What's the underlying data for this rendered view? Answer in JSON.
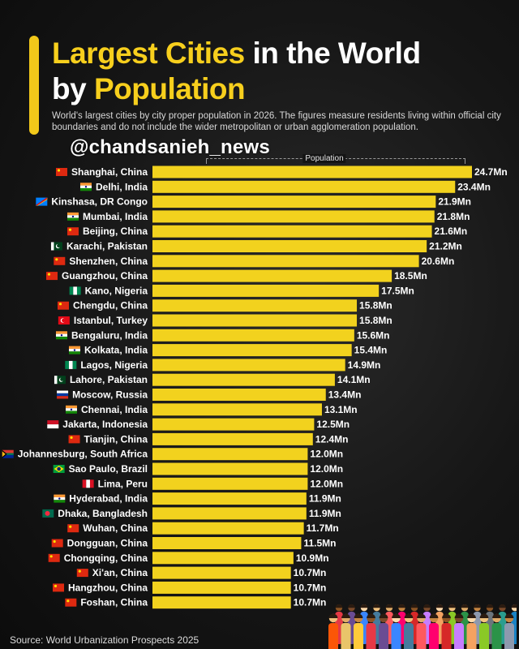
{
  "header": {
    "title_part1": "Largest Cities",
    "title_part2": " in the World",
    "title_part3": "by ",
    "title_part4": "Population",
    "subtitle": "World's largest cities by city proper population in 2026. The figures measure residents living within official city boundaries and do not include the wider metropolitan or urban agglomeration population.",
    "watermark": "@chandsanieh_news"
  },
  "source": "Source: World Urbanization Prospects 2025",
  "colors": {
    "accent": "#f7cf1d",
    "bar": "#f2d21e",
    "background": "#161616"
  },
  "chart_data": {
    "type": "bar",
    "orientation": "horizontal",
    "legend_label": "Population",
    "unit_suffix": "Mn",
    "categories": [
      "Shanghai, China",
      "Delhi, India",
      "Kinshasa, DR Congo",
      "Mumbai, India",
      "Beijing, China",
      "Karachi, Pakistan",
      "Shenzhen, China",
      "Guangzhou, China",
      "Kano, Nigeria",
      "Chengdu, China",
      "Istanbul, Turkey",
      "Bengaluru, India",
      "Kolkata, India",
      "Lagos, Nigeria",
      "Lahore, Pakistan",
      "Moscow, Russia",
      "Chennai, India",
      "Jakarta, Indonesia",
      "Tianjin, China",
      "Johannesburg, South Africa",
      "Sao Paulo, Brazil",
      "Lima, Peru",
      "Hyderabad, India",
      "Dhaka, Bangladesh",
      "Wuhan, China",
      "Dongguan, China",
      "Chongqing, China",
      "Xi'an, China",
      "Hangzhou, China",
      "Foshan, China"
    ],
    "values": [
      24.7,
      23.4,
      21.9,
      21.8,
      21.6,
      21.2,
      20.6,
      18.5,
      17.5,
      15.8,
      15.8,
      15.6,
      15.4,
      14.9,
      14.1,
      13.4,
      13.1,
      12.5,
      12.4,
      12.0,
      12.0,
      12.0,
      11.9,
      11.9,
      11.7,
      11.5,
      10.9,
      10.7,
      10.7,
      10.7
    ],
    "value_labels": [
      "24.7Mn",
      "23.4Mn",
      "21.9Mn",
      "21.8Mn",
      "21.6Mn",
      "21.2Mn",
      "20.6Mn",
      "18.5Mn",
      "17.5Mn",
      "15.8Mn",
      "15.8Mn",
      "15.6Mn",
      "15.4Mn",
      "14.9Mn",
      "14.1Mn",
      "13.4Mn",
      "13.1Mn",
      "12.5Mn",
      "12.4Mn",
      "12.0Mn",
      "12.0Mn",
      "12.0Mn",
      "11.9Mn",
      "11.9Mn",
      "11.7Mn",
      "11.5Mn",
      "10.9Mn",
      "10.7Mn",
      "10.7Mn",
      "10.7Mn"
    ],
    "flags": [
      "china",
      "india",
      "drcongo",
      "india",
      "china",
      "pakistan",
      "china",
      "china",
      "nigeria",
      "china",
      "turkey",
      "india",
      "india",
      "nigeria",
      "pakistan",
      "russia",
      "india",
      "indonesia",
      "china",
      "southafrica",
      "brazil",
      "peru",
      "india",
      "bangladesh",
      "china",
      "china",
      "china",
      "china",
      "china",
      "china"
    ],
    "xlim": [
      0,
      24.7
    ],
    "grid": false,
    "legend": "top"
  }
}
